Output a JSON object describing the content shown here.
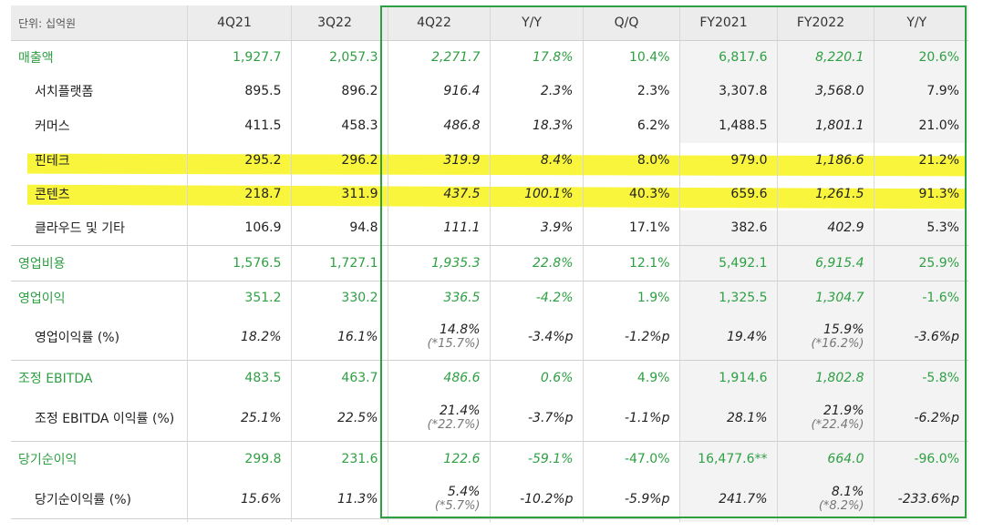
{
  "header": {
    "unit_label": "단위: 십억원",
    "cols": [
      "4Q21",
      "3Q22",
      "4Q22",
      "Y/Y",
      "Q/Q",
      "FY2021",
      "FY2022",
      "Y/Y"
    ]
  },
  "rows": [
    {
      "label": "매출액",
      "type": "group",
      "v": [
        "1,927.7",
        "2,057.3",
        "2,271.7",
        "17.8%",
        "10.4%",
        "6,817.6",
        "8,220.1",
        "20.6%"
      ]
    },
    {
      "label": "서치플랫폼",
      "type": "sub",
      "v": [
        "895.5",
        "896.2",
        "916.4",
        "2.3%",
        "2.3%",
        "3,307.8",
        "3,568.0",
        "7.9%"
      ]
    },
    {
      "label": "커머스",
      "type": "sub",
      "v": [
        "411.5",
        "458.3",
        "486.8",
        "18.3%",
        "6.2%",
        "1,488.5",
        "1,801.1",
        "21.0%"
      ]
    },
    {
      "label": "핀테크",
      "type": "sub",
      "highlight": true,
      "v": [
        "295.2",
        "296.2",
        "319.9",
        "8.4%",
        "8.0%",
        "979.0",
        "1,186.6",
        "21.2%"
      ]
    },
    {
      "label": "콘텐츠",
      "type": "sub",
      "highlight": true,
      "v": [
        "218.7",
        "311.9",
        "437.5",
        "100.1%",
        "40.3%",
        "659.6",
        "1,261.5",
        "91.3%"
      ]
    },
    {
      "label": "클라우드 및 기타",
      "type": "sub",
      "v": [
        "106.9",
        "94.8",
        "111.1",
        "3.9%",
        "17.1%",
        "382.6",
        "402.9",
        "5.3%"
      ]
    },
    {
      "label": "영업비용",
      "type": "group",
      "v": [
        "1,576.5",
        "1,727.1",
        "1,935.3",
        "22.8%",
        "12.1%",
        "5,492.1",
        "6,915.4",
        "25.9%"
      ]
    },
    {
      "label": "영업이익",
      "type": "group",
      "v": [
        "351.2",
        "330.2",
        "336.5",
        "-4.2%",
        "1.9%",
        "1,325.5",
        "1,304.7",
        "-1.6%"
      ]
    },
    {
      "label": "영업이익률 (%)",
      "type": "ratio",
      "v": [
        "18.2%",
        "16.1%",
        "14.8%",
        "-3.4%p",
        "-1.2%p",
        "19.4%",
        "15.9%",
        "-3.6%p"
      ],
      "notes": {
        "c3": "(*15.7%)",
        "c7": "(*16.2%)"
      }
    },
    {
      "label": "조정 EBITDA",
      "type": "group",
      "v": [
        "483.5",
        "463.7",
        "486.6",
        "0.6%",
        "4.9%",
        "1,914.6",
        "1,802.8",
        "-5.8%"
      ]
    },
    {
      "label": "조정 EBITDA 이익률 (%)",
      "type": "ratio",
      "v": [
        "25.1%",
        "22.5%",
        "21.4%",
        "-3.7%p",
        "-1.1%p",
        "28.1%",
        "21.9%",
        "-6.2%p"
      ],
      "notes": {
        "c3": "(*22.7%)",
        "c7": "(*22.4%)"
      }
    },
    {
      "label": "당기순이익",
      "type": "group",
      "v": [
        "299.8",
        "231.6",
        "122.6",
        "-59.1%",
        "-47.0%",
        "16,477.6**",
        "664.0",
        "-96.0%"
      ]
    },
    {
      "label": "당기순이익률 (%)",
      "type": "ratio",
      "v": [
        "15.6%",
        "11.3%",
        "5.4%",
        "-10.2%p",
        "-5.9%p",
        "241.7%",
        "8.1%",
        "-233.6%p"
      ],
      "notes": {
        "c3": "(*5.7%)",
        "c7": "(*8.2%)"
      }
    }
  ],
  "colors": {
    "green": "#2ea043",
    "highlight": "#f7f31a",
    "header_bg": "#ececec",
    "fy_bg": "#f3f3f3"
  }
}
